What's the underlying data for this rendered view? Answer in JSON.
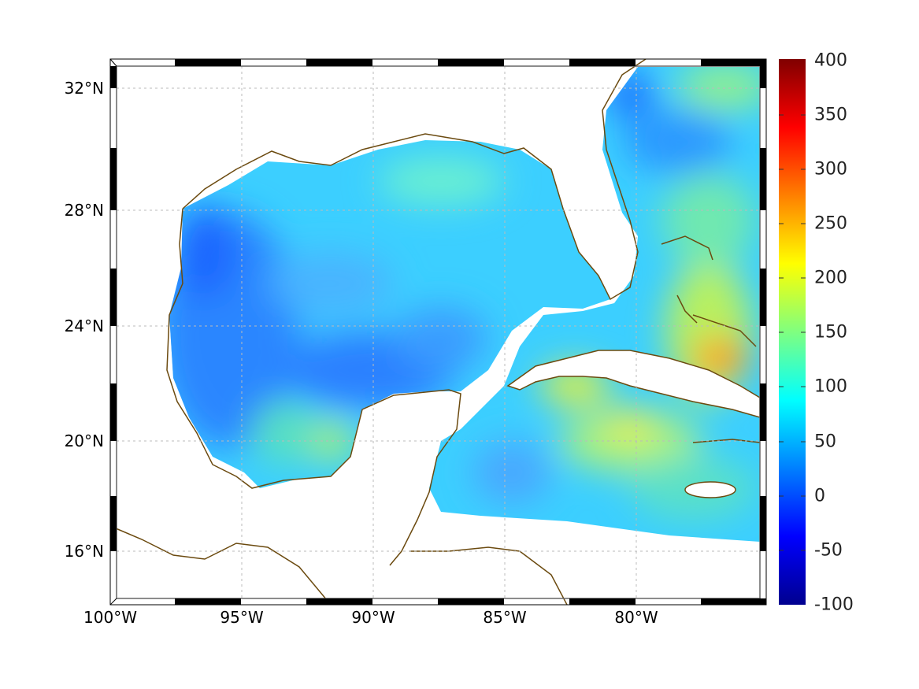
{
  "map": {
    "projection_extent": {
      "lon_min": -100,
      "lon_max": -75,
      "lat_min": 14.5,
      "lat_max": 33
    },
    "lat_labels": [
      "32°N",
      "28°N",
      "24°N",
      "20°N",
      "16°N"
    ],
    "lon_labels": [
      "100°W",
      "95°W",
      "90°W",
      "85°W",
      "80°W"
    ],
    "coastline_color": "#6b4a0f"
  },
  "colorbar": {
    "range": [
      -100,
      400
    ],
    "colormap": "jet",
    "ticks": [
      "400",
      "350",
      "300",
      "250",
      "200",
      "150",
      "100",
      "50",
      "0",
      "-50",
      "-100"
    ]
  }
}
